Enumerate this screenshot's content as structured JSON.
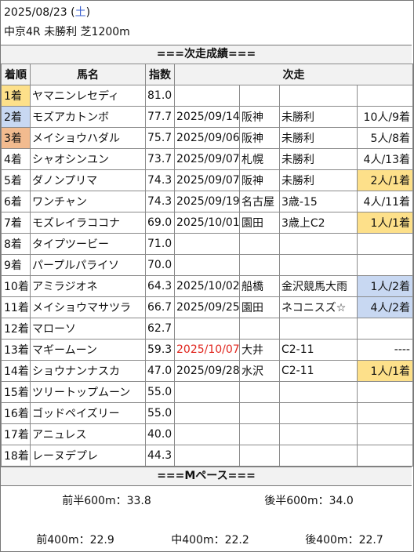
{
  "header": {
    "date": "2025/08/23",
    "weekday": "土",
    "race": "中京4R 未勝利 芝1200m"
  },
  "sections": {
    "results_title": "===次走成績===",
    "pace_title": "===Mペース==="
  },
  "table": {
    "columns": [
      "着順",
      "馬名",
      "指数",
      "次走"
    ],
    "rows": [
      {
        "rank": "1着",
        "horse": "ヤマニンレセディ",
        "index": "81.0",
        "date": "",
        "track": "",
        "race": "",
        "result": ""
      },
      {
        "rank": "2着",
        "horse": "モズアカトンボ",
        "index": "77.7",
        "date": "2025/09/14",
        "track": "阪神",
        "race": "未勝利",
        "result": "10人/9着"
      },
      {
        "rank": "3着",
        "horse": "メイショウハダル",
        "index": "75.7",
        "date": "2025/09/06",
        "track": "阪神",
        "race": "未勝利",
        "result": "5人/8着"
      },
      {
        "rank": "4着",
        "horse": "シャオシンユン",
        "index": "73.7",
        "date": "2025/09/07",
        "track": "札幌",
        "race": "未勝利",
        "result": "4人/13着"
      },
      {
        "rank": "5着",
        "horse": "ダノンプリマ",
        "index": "74.3",
        "date": "2025/09/07",
        "track": "阪神",
        "race": "未勝利",
        "result": "2人/1着"
      },
      {
        "rank": "6着",
        "horse": "ワンチャン",
        "index": "74.3",
        "date": "2025/09/19",
        "track": "名古屋",
        "race": "3歳-15",
        "result": "4人/11着"
      },
      {
        "rank": "7着",
        "horse": "モズレイラココナ",
        "index": "69.0",
        "date": "2025/10/01",
        "track": "園田",
        "race": "3歳上C2",
        "result": "1人/1着"
      },
      {
        "rank": "8着",
        "horse": "タイプツービー",
        "index": "71.0",
        "date": "",
        "track": "",
        "race": "",
        "result": ""
      },
      {
        "rank": "9着",
        "horse": "パープルパライソ",
        "index": "70.0",
        "date": "",
        "track": "",
        "race": "",
        "result": ""
      },
      {
        "rank": "10着",
        "horse": "アミラジオネ",
        "index": "64.3",
        "date": "2025/10/02",
        "track": "船橋",
        "race": "金沢競馬大雨",
        "result": "1人/2着"
      },
      {
        "rank": "11着",
        "horse": "メイショウマサツラ",
        "index": "66.7",
        "date": "2025/09/25",
        "track": "園田",
        "race": "ネコニスズ☆",
        "result": "4人/2着"
      },
      {
        "rank": "12着",
        "horse": "マローソ",
        "index": "62.7",
        "date": "",
        "track": "",
        "race": "",
        "result": ""
      },
      {
        "rank": "13着",
        "horse": "マギームーン",
        "index": "59.3",
        "date": "2025/10/07",
        "track": "大井",
        "race": "C2-11",
        "result": "----"
      },
      {
        "rank": "14着",
        "horse": "ショウナンナスカ",
        "index": "47.0",
        "date": "2025/09/28",
        "track": "水沢",
        "race": "C2-11",
        "result": "1人/1着"
      },
      {
        "rank": "15着",
        "horse": "ツリートップムーン",
        "index": "55.0",
        "date": "",
        "track": "",
        "race": "",
        "result": ""
      },
      {
        "rank": "16着",
        "horse": "ゴッドペイズリー",
        "index": "55.0",
        "date": "",
        "track": "",
        "race": "",
        "result": ""
      },
      {
        "rank": "17着",
        "horse": "アニュレス",
        "index": "40.0",
        "date": "",
        "track": "",
        "race": "",
        "result": ""
      },
      {
        "rank": "18着",
        "horse": "レーヌデプレ",
        "index": "44.3",
        "date": "",
        "track": "",
        "race": "",
        "result": ""
      }
    ]
  },
  "pace": {
    "first600": "前半600m：33.8",
    "last600": "後半600m：34.0",
    "front400": "前400m：22.9",
    "mid400": "中400m：22.2",
    "back400": "後400m：22.7"
  },
  "colors": {
    "gold": "#fde08a",
    "blue": "#c8d8f2",
    "orange": "#f2bb8f",
    "saturday_blue": "#3a5fd0",
    "date_red": "#e0271f"
  }
}
